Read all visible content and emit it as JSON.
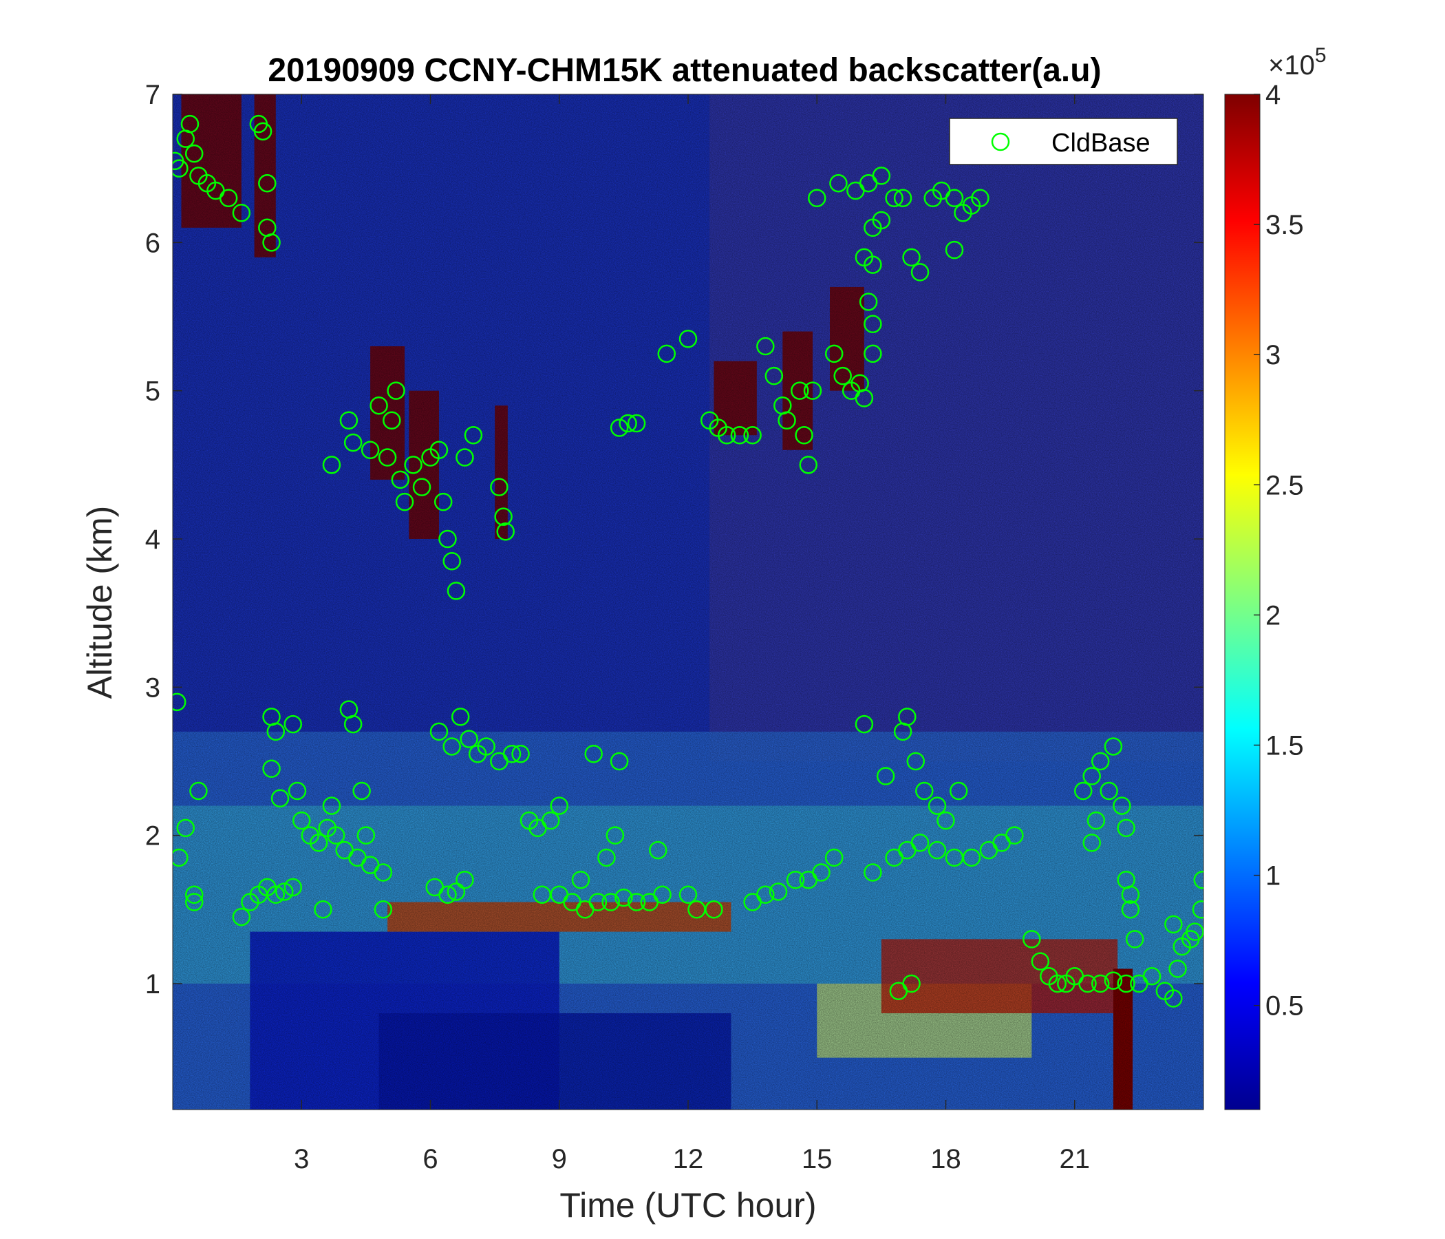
{
  "chart_data": {
    "type": "heatmap",
    "title": "20190909 CCNY-CHM15K attenuated backscatter(a.u)",
    "xlabel": "Time (UTC hour)",
    "ylabel": "Altitude (km)",
    "xlim": [
      0,
      24
    ],
    "ylim": [
      0.15,
      7
    ],
    "x_ticks": [
      3,
      6,
      9,
      12,
      15,
      18,
      21
    ],
    "y_ticks": [
      1,
      2,
      3,
      4,
      5,
      6,
      7
    ],
    "colorbar": {
      "colormap": "jet",
      "range": [
        0.1,
        4
      ],
      "ticks": [
        0.5,
        1,
        1.5,
        2,
        2.5,
        3,
        3.5,
        4
      ],
      "exponent_label": "×10",
      "exponent_power": "5"
    },
    "legend": {
      "placement": "top-right",
      "entries": [
        "CldBase"
      ]
    },
    "series": [
      {
        "name": "CldBase",
        "marker": "circle",
        "color": "#00ff00",
        "points": [
          [
            0.05,
            6.55
          ],
          [
            0.15,
            6.5
          ],
          [
            0.3,
            6.7
          ],
          [
            0.4,
            6.8
          ],
          [
            0.5,
            6.6
          ],
          [
            0.6,
            6.45
          ],
          [
            0.8,
            6.4
          ],
          [
            1.0,
            6.35
          ],
          [
            1.3,
            6.3
          ],
          [
            1.6,
            6.2
          ],
          [
            2.0,
            6.8
          ],
          [
            2.1,
            6.75
          ],
          [
            2.2,
            6.4
          ],
          [
            2.2,
            6.1
          ],
          [
            2.3,
            6.0
          ],
          [
            0.1,
            2.9
          ],
          [
            0.15,
            1.85
          ],
          [
            0.3,
            2.05
          ],
          [
            0.5,
            1.6
          ],
          [
            0.6,
            2.3
          ],
          [
            0.5,
            1.55
          ],
          [
            1.6,
            1.45
          ],
          [
            1.8,
            1.55
          ],
          [
            2.0,
            1.6
          ],
          [
            2.2,
            1.65
          ],
          [
            2.4,
            1.6
          ],
          [
            2.6,
            1.62
          ],
          [
            2.8,
            1.65
          ],
          [
            2.3,
            2.8
          ],
          [
            2.4,
            2.7
          ],
          [
            2.3,
            2.45
          ],
          [
            2.5,
            2.25
          ],
          [
            2.8,
            2.75
          ],
          [
            2.9,
            2.3
          ],
          [
            3.0,
            2.1
          ],
          [
            3.2,
            2.0
          ],
          [
            3.4,
            1.95
          ],
          [
            3.6,
            2.05
          ],
          [
            3.8,
            2.0
          ],
          [
            4.0,
            1.9
          ],
          [
            4.3,
            1.85
          ],
          [
            4.6,
            1.8
          ],
          [
            4.9,
            1.75
          ],
          [
            3.5,
            1.5
          ],
          [
            4.9,
            1.5
          ],
          [
            4.1,
            2.85
          ],
          [
            4.2,
            2.75
          ],
          [
            4.4,
            2.3
          ],
          [
            4.5,
            2.0
          ],
          [
            3.7,
            2.2
          ],
          [
            3.7,
            4.5
          ],
          [
            4.1,
            4.8
          ],
          [
            4.2,
            4.65
          ],
          [
            4.6,
            4.6
          ],
          [
            4.8,
            4.9
          ],
          [
            5.0,
            4.55
          ],
          [
            5.1,
            4.8
          ],
          [
            5.2,
            5.0
          ],
          [
            5.3,
            4.4
          ],
          [
            5.4,
            4.25
          ],
          [
            5.6,
            4.5
          ],
          [
            5.8,
            4.35
          ],
          [
            6.0,
            4.55
          ],
          [
            6.2,
            4.6
          ],
          [
            6.3,
            4.25
          ],
          [
            6.4,
            4.0
          ],
          [
            6.5,
            3.85
          ],
          [
            6.6,
            3.65
          ],
          [
            6.8,
            4.55
          ],
          [
            7.0,
            4.7
          ],
          [
            7.6,
            4.35
          ],
          [
            7.7,
            4.15
          ],
          [
            7.75,
            4.05
          ],
          [
            6.1,
            1.65
          ],
          [
            6.4,
            1.6
          ],
          [
            6.6,
            1.62
          ],
          [
            6.8,
            1.7
          ],
          [
            6.2,
            2.7
          ],
          [
            6.5,
            2.6
          ],
          [
            6.7,
            2.8
          ],
          [
            6.9,
            2.65
          ],
          [
            7.1,
            2.55
          ],
          [
            7.3,
            2.6
          ],
          [
            7.6,
            2.5
          ],
          [
            7.9,
            2.55
          ],
          [
            8.1,
            2.55
          ],
          [
            8.3,
            2.1
          ],
          [
            8.5,
            2.05
          ],
          [
            8.8,
            2.1
          ],
          [
            9.0,
            2.2
          ],
          [
            8.6,
            1.6
          ],
          [
            9.0,
            1.6
          ],
          [
            9.3,
            1.55
          ],
          [
            9.6,
            1.5
          ],
          [
            9.9,
            1.55
          ],
          [
            10.2,
            1.55
          ],
          [
            10.5,
            1.58
          ],
          [
            10.8,
            1.55
          ],
          [
            11.1,
            1.55
          ],
          [
            11.4,
            1.6
          ],
          [
            9.8,
            2.55
          ],
          [
            10.1,
            1.85
          ],
          [
            10.3,
            2.0
          ],
          [
            10.4,
            2.5
          ],
          [
            11.3,
            1.9
          ],
          [
            9.5,
            1.7
          ],
          [
            10.4,
            4.75
          ],
          [
            10.6,
            4.78
          ],
          [
            10.8,
            4.78
          ],
          [
            11.5,
            5.25
          ],
          [
            12.0,
            5.35
          ],
          [
            12.0,
            1.6
          ],
          [
            12.2,
            1.5
          ],
          [
            12.6,
            1.5
          ],
          [
            12.5,
            4.8
          ],
          [
            12.7,
            4.75
          ],
          [
            12.9,
            4.7
          ],
          [
            13.2,
            4.7
          ],
          [
            13.5,
            4.7
          ],
          [
            13.5,
            1.55
          ],
          [
            13.8,
            1.6
          ],
          [
            14.1,
            1.62
          ],
          [
            14.5,
            1.7
          ],
          [
            14.8,
            1.7
          ],
          [
            15.1,
            1.75
          ],
          [
            15.4,
            1.85
          ],
          [
            13.8,
            5.3
          ],
          [
            14.0,
            5.1
          ],
          [
            14.2,
            4.9
          ],
          [
            14.3,
            4.8
          ],
          [
            14.6,
            5.0
          ],
          [
            14.7,
            4.7
          ],
          [
            14.8,
            4.5
          ],
          [
            14.9,
            5.0
          ],
          [
            15.0,
            6.3
          ],
          [
            15.5,
            6.4
          ],
          [
            15.4,
            5.25
          ],
          [
            15.6,
            5.1
          ],
          [
            15.8,
            5.0
          ],
          [
            16.0,
            5.05
          ],
          [
            16.1,
            4.95
          ],
          [
            15.9,
            6.35
          ],
          [
            16.2,
            6.4
          ],
          [
            16.5,
            6.45
          ],
          [
            16.8,
            6.3
          ],
          [
            16.1,
            5.9
          ],
          [
            16.3,
            5.85
          ],
          [
            16.2,
            5.6
          ],
          [
            16.3,
            5.45
          ],
          [
            16.3,
            5.25
          ],
          [
            16.3,
            6.1
          ],
          [
            16.5,
            6.15
          ],
          [
            17.0,
            6.3
          ],
          [
            17.2,
            5.9
          ],
          [
            17.4,
            5.8
          ],
          [
            17.7,
            6.3
          ],
          [
            17.9,
            6.35
          ],
          [
            18.2,
            6.3
          ],
          [
            18.4,
            6.2
          ],
          [
            18.6,
            6.25
          ],
          [
            18.8,
            6.3
          ],
          [
            18.2,
            5.95
          ],
          [
            16.1,
            2.75
          ],
          [
            16.6,
            2.4
          ],
          [
            17.0,
            2.7
          ],
          [
            17.1,
            2.8
          ],
          [
            17.3,
            2.5
          ],
          [
            17.5,
            2.3
          ],
          [
            17.8,
            2.2
          ],
          [
            18.0,
            2.1
          ],
          [
            18.3,
            2.3
          ],
          [
            16.3,
            1.75
          ],
          [
            16.8,
            1.85
          ],
          [
            17.1,
            1.9
          ],
          [
            17.4,
            1.95
          ],
          [
            17.8,
            1.9
          ],
          [
            18.2,
            1.85
          ],
          [
            18.6,
            1.85
          ],
          [
            19.0,
            1.9
          ],
          [
            19.3,
            1.95
          ],
          [
            19.6,
            2.0
          ],
          [
            16.9,
            0.95
          ],
          [
            17.2,
            1.0
          ],
          [
            20.0,
            1.3
          ],
          [
            20.2,
            1.15
          ],
          [
            20.4,
            1.05
          ],
          [
            20.6,
            1.0
          ],
          [
            20.8,
            1.0
          ],
          [
            21.0,
            1.05
          ],
          [
            21.3,
            1.0
          ],
          [
            21.6,
            1.0
          ],
          [
            21.9,
            1.02
          ],
          [
            22.2,
            1.0
          ],
          [
            22.5,
            1.0
          ],
          [
            22.8,
            1.05
          ],
          [
            23.1,
            0.95
          ],
          [
            23.3,
            0.9
          ],
          [
            21.2,
            2.3
          ],
          [
            21.4,
            2.4
          ],
          [
            21.6,
            2.5
          ],
          [
            21.8,
            2.3
          ],
          [
            21.9,
            2.6
          ],
          [
            22.1,
            2.2
          ],
          [
            22.2,
            2.05
          ],
          [
            21.5,
            2.1
          ],
          [
            21.4,
            1.95
          ],
          [
            22.2,
            1.7
          ],
          [
            22.3,
            1.5
          ],
          [
            22.4,
            1.3
          ],
          [
            22.3,
            1.6
          ],
          [
            23.4,
            1.1
          ],
          [
            23.5,
            1.25
          ],
          [
            23.7,
            1.3
          ],
          [
            23.8,
            1.35
          ],
          [
            23.95,
            1.5
          ],
          [
            23.98,
            1.7
          ],
          [
            23.3,
            1.4
          ]
        ]
      }
    ]
  }
}
